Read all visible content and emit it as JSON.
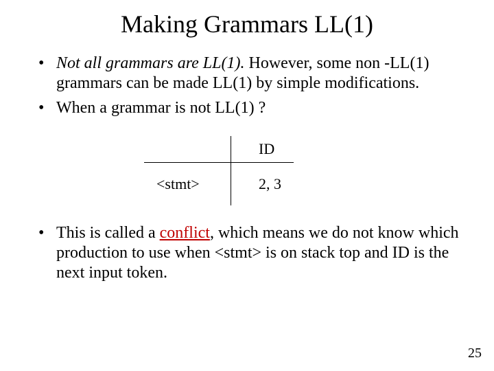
{
  "title": "Making Grammars LL(1)",
  "bullets": {
    "b1_lead": "Not all grammars are LL(1).",
    "b1_rest": "  However, some non -LL(1) grammars can be made LL(1) by simple modifications.",
    "b2": "When a grammar is not LL(1) ?",
    "b3_a": "This is called a ",
    "b3_conflict": "conflict",
    "b3_b": ", which means we do not know which production to use when <stmt> is on stack top and  ID is the next input token."
  },
  "table": {
    "col_header": "ID",
    "row_label": "<stmt>",
    "cell": "2, 3"
  },
  "page_number": "25",
  "colors": {
    "conflict": "#c00000",
    "text": "#000000",
    "background": "#ffffff",
    "border": "#000000"
  }
}
